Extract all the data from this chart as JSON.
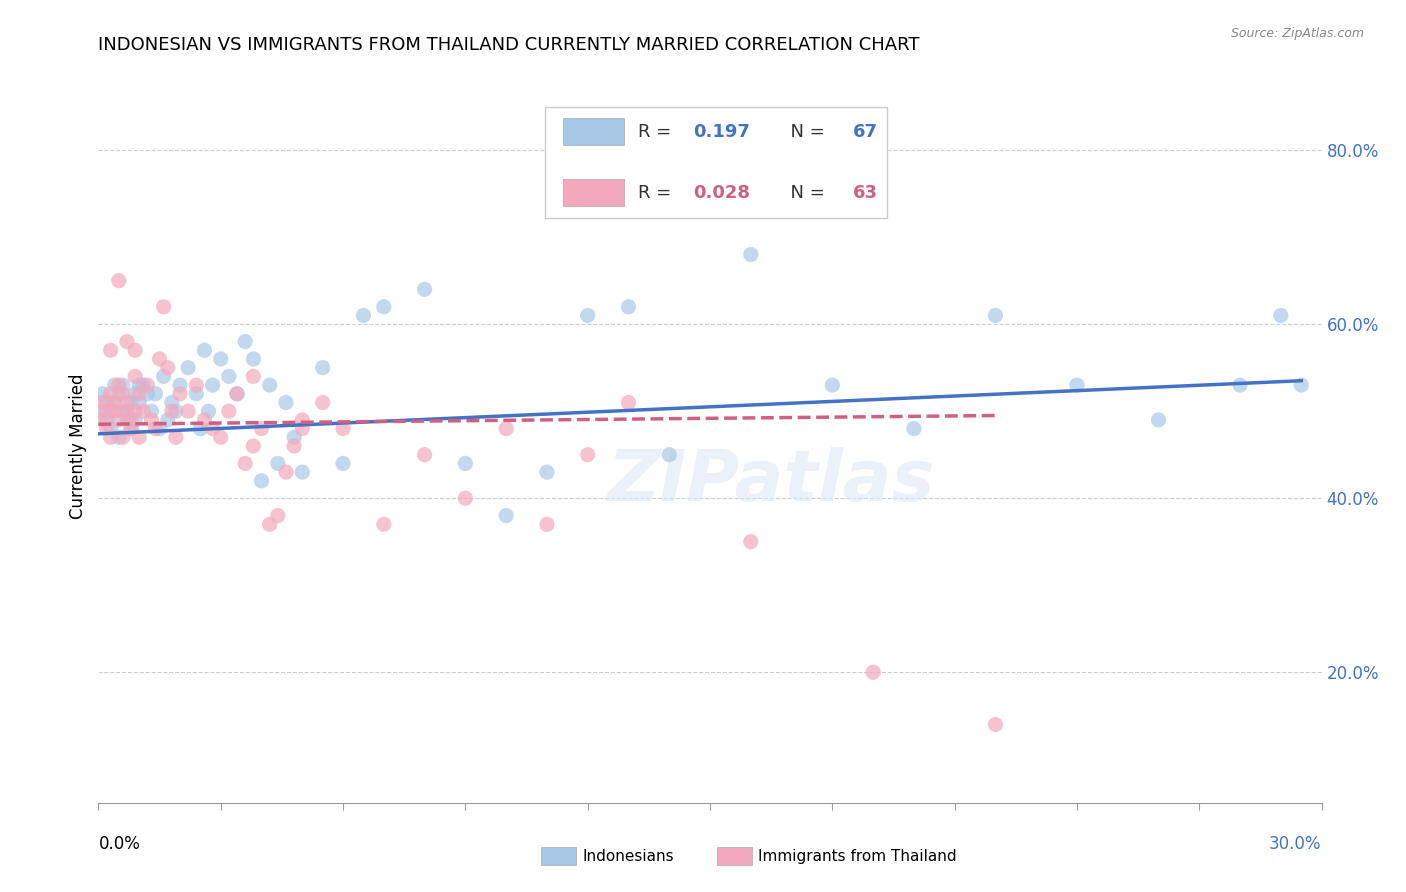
{
  "title": "INDONESIAN VS IMMIGRANTS FROM THAILAND CURRENTLY MARRIED CORRELATION CHART",
  "source": "Source: ZipAtlas.com",
  "ylabel": "Currently Married",
  "ylabel_right_ticks": [
    "80.0%",
    "60.0%",
    "40.0%",
    "20.0%"
  ],
  "ylabel_right_values": [
    0.8,
    0.6,
    0.4,
    0.2
  ],
  "xmin": 0.0,
  "xmax": 0.3,
  "ymin": 0.05,
  "ymax": 0.87,
  "color_blue": "#a8c8e8",
  "color_pink": "#f4a8bc",
  "color_line_blue": "#4472c4",
  "color_line_pink": "#d06080",
  "watermark": "ZIPatlas",
  "indonesian_x": [
    0.001,
    0.001,
    0.002,
    0.002,
    0.003,
    0.003,
    0.004,
    0.004,
    0.005,
    0.005,
    0.006,
    0.006,
    0.007,
    0.007,
    0.008,
    0.008,
    0.009,
    0.009,
    0.01,
    0.01,
    0.011,
    0.012,
    0.013,
    0.014,
    0.015,
    0.016,
    0.017,
    0.018,
    0.019,
    0.02,
    0.022,
    0.024,
    0.025,
    0.026,
    0.027,
    0.028,
    0.03,
    0.032,
    0.034,
    0.036,
    0.038,
    0.04,
    0.042,
    0.044,
    0.046,
    0.048,
    0.05,
    0.055,
    0.06,
    0.065,
    0.07,
    0.08,
    0.09,
    0.1,
    0.11,
    0.12,
    0.13,
    0.14,
    0.16,
    0.18,
    0.2,
    0.22,
    0.24,
    0.26,
    0.28,
    0.295,
    0.29
  ],
  "indonesian_y": [
    0.5,
    0.52,
    0.49,
    0.51,
    0.48,
    0.5,
    0.51,
    0.53,
    0.47,
    0.52,
    0.5,
    0.53,
    0.5,
    0.49,
    0.48,
    0.51,
    0.49,
    0.52,
    0.51,
    0.53,
    0.53,
    0.52,
    0.5,
    0.52,
    0.48,
    0.54,
    0.49,
    0.51,
    0.5,
    0.53,
    0.55,
    0.52,
    0.48,
    0.57,
    0.5,
    0.53,
    0.56,
    0.54,
    0.52,
    0.58,
    0.56,
    0.42,
    0.53,
    0.44,
    0.51,
    0.47,
    0.43,
    0.55,
    0.44,
    0.61,
    0.62,
    0.64,
    0.44,
    0.38,
    0.43,
    0.61,
    0.62,
    0.45,
    0.68,
    0.53,
    0.48,
    0.61,
    0.53,
    0.49,
    0.53,
    0.53,
    0.61
  ],
  "thailand_x": [
    0.001,
    0.001,
    0.002,
    0.002,
    0.003,
    0.003,
    0.004,
    0.004,
    0.005,
    0.005,
    0.006,
    0.006,
    0.007,
    0.007,
    0.008,
    0.008,
    0.009,
    0.009,
    0.01,
    0.01,
    0.011,
    0.012,
    0.013,
    0.014,
    0.015,
    0.016,
    0.017,
    0.018,
    0.019,
    0.02,
    0.022,
    0.024,
    0.026,
    0.028,
    0.03,
    0.032,
    0.034,
    0.036,
    0.038,
    0.04,
    0.042,
    0.044,
    0.046,
    0.048,
    0.05,
    0.055,
    0.06,
    0.07,
    0.08,
    0.09,
    0.1,
    0.11,
    0.12,
    0.13,
    0.003,
    0.005,
    0.007,
    0.009,
    0.038,
    0.05,
    0.16,
    0.19,
    0.22
  ],
  "thailand_y": [
    0.49,
    0.51,
    0.5,
    0.48,
    0.52,
    0.47,
    0.51,
    0.5,
    0.49,
    0.53,
    0.52,
    0.47,
    0.51,
    0.5,
    0.49,
    0.48,
    0.5,
    0.54,
    0.47,
    0.52,
    0.5,
    0.53,
    0.49,
    0.48,
    0.56,
    0.62,
    0.55,
    0.5,
    0.47,
    0.52,
    0.5,
    0.53,
    0.49,
    0.48,
    0.47,
    0.5,
    0.52,
    0.44,
    0.46,
    0.48,
    0.37,
    0.38,
    0.43,
    0.46,
    0.48,
    0.51,
    0.48,
    0.37,
    0.45,
    0.4,
    0.48,
    0.37,
    0.45,
    0.51,
    0.57,
    0.65,
    0.58,
    0.57,
    0.54,
    0.49,
    0.35,
    0.2,
    0.14
  ],
  "blue_trend_x": [
    0.0,
    0.295
  ],
  "blue_trend_y": [
    0.474,
    0.535
  ],
  "pink_trend_x": [
    0.0,
    0.22
  ],
  "pink_trend_y": [
    0.485,
    0.495
  ]
}
